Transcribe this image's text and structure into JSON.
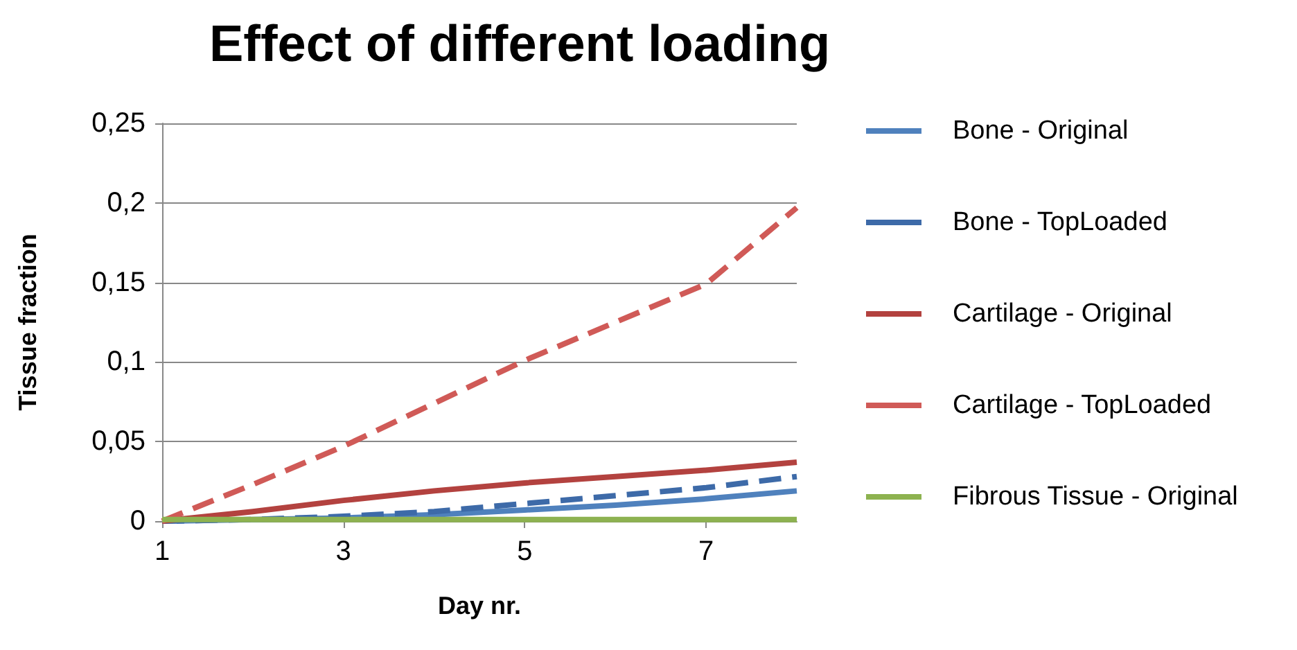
{
  "chart_data": {
    "type": "line",
    "title": "Effect of different loading",
    "xlabel": "Day nr.",
    "ylabel": "Tissue fraction",
    "x": [
      1,
      2,
      3,
      4,
      5,
      6,
      7,
      8
    ],
    "xlim": [
      1,
      8
    ],
    "xticks": [
      1,
      3,
      5,
      7
    ],
    "ylim": [
      0,
      0.25
    ],
    "yticks": [
      {
        "value": 0,
        "label": "0"
      },
      {
        "value": 0.05,
        "label": "0,05"
      },
      {
        "value": 0.1,
        "label": "0,1"
      },
      {
        "value": 0.15,
        "label": "0,15"
      },
      {
        "value": 0.2,
        "label": "0,2"
      },
      {
        "value": 0.25,
        "label": "0,25"
      }
    ],
    "grid": "y",
    "legend": "right",
    "marker": "none",
    "series": [
      {
        "name": "Bone - Original",
        "color": "#4f81bd",
        "line_style": "solid",
        "values": [
          0,
          0.001,
          0.002,
          0.004,
          0.007,
          0.01,
          0.014,
          0.019
        ]
      },
      {
        "name": "Bone - TopLoaded",
        "color": "#3d6aa8",
        "line_style": "dashed",
        "values": [
          0,
          0.001,
          0.003,
          0.006,
          0.011,
          0.016,
          0.021,
          0.028
        ]
      },
      {
        "name": "Cartilage - Original",
        "color": "#b3423f",
        "line_style": "solid",
        "values": [
          0,
          0.006,
          0.013,
          0.019,
          0.024,
          0.028,
          0.032,
          0.037
        ]
      },
      {
        "name": "Cartilage - TopLoaded",
        "color": "#d05a57",
        "line_style": "dashed",
        "values": [
          0,
          0.023,
          0.047,
          0.074,
          0.101,
          0.125,
          0.149,
          0.197
        ]
      },
      {
        "name": "Fibrous Tissue - Original",
        "color": "#8db250",
        "line_style": "solid",
        "values": [
          0.001,
          0.001,
          0.001,
          0.001,
          0.001,
          0.001,
          0.001,
          0.001
        ]
      }
    ]
  }
}
